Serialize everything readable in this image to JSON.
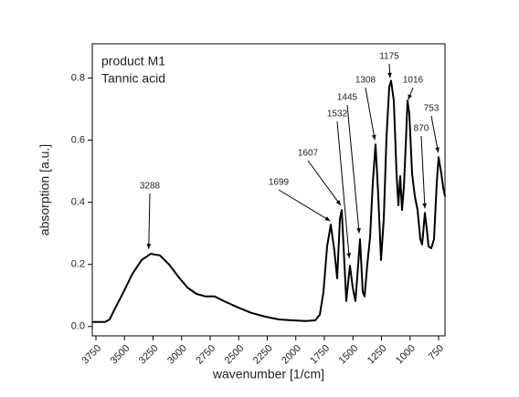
{
  "chart_data": {
    "type": "line",
    "xlabel": "wavenumber [1/cm]",
    "ylabel": "absorption [a.u.]",
    "annotation_text": [
      "product M1",
      "Tannic acid"
    ],
    "color": "#000000",
    "x": [
      3782,
      3670,
      3630,
      3590,
      3510,
      3430,
      3350,
      3270,
      3190,
      3110,
      3030,
      2950,
      2870,
      2790,
      2710,
      2630,
      2510,
      2390,
      2270,
      2150,
      2030,
      1910,
      1830,
      1790,
      1758,
      1726,
      1694,
      1662,
      1638,
      1614,
      1598,
      1574,
      1558,
      1542,
      1526,
      1502,
      1478,
      1454,
      1438,
      1414,
      1398,
      1374,
      1350,
      1326,
      1302,
      1278,
      1254,
      1230,
      1206,
      1182,
      1166,
      1142,
      1118,
      1102,
      1086,
      1070,
      1054,
      1038,
      1022,
      1006,
      982,
      958,
      934,
      910,
      894,
      870,
      854,
      838,
      814,
      790,
      766,
      750,
      726,
      710,
      694
    ],
    "values": [
      0.015,
      0.015,
      0.023,
      0.053,
      0.11,
      0.17,
      0.214,
      0.234,
      0.229,
      0.2,
      0.161,
      0.126,
      0.105,
      0.097,
      0.097,
      0.082,
      0.062,
      0.044,
      0.032,
      0.023,
      0.02,
      0.018,
      0.02,
      0.038,
      0.111,
      0.258,
      0.328,
      0.243,
      0.155,
      0.346,
      0.375,
      0.2,
      0.082,
      0.141,
      0.196,
      0.126,
      0.082,
      0.2,
      0.281,
      0.111,
      0.097,
      0.2,
      0.287,
      0.463,
      0.586,
      0.419,
      0.214,
      0.346,
      0.61,
      0.771,
      0.791,
      0.727,
      0.492,
      0.39,
      0.484,
      0.375,
      0.448,
      0.58,
      0.727,
      0.683,
      0.492,
      0.419,
      0.375,
      0.281,
      0.264,
      0.366,
      0.316,
      0.258,
      0.252,
      0.281,
      0.463,
      0.545,
      0.492,
      0.448,
      0.419
    ],
    "annotations": [
      {
        "x": 3288,
        "y": 0.25
      },
      {
        "x": 1699,
        "y": 0.34
      },
      {
        "x": 1607,
        "y": 0.39
      },
      {
        "x": 1532,
        "y": 0.22
      },
      {
        "x": 1445,
        "y": 0.3
      },
      {
        "x": 1308,
        "y": 0.6
      },
      {
        "x": 1175,
        "y": 0.8
      },
      {
        "x": 1016,
        "y": 0.73
      },
      {
        "x": 870,
        "y": 0.38
      },
      {
        "x": 753,
        "y": 0.56
      }
    ],
    "xlim": [
      3782,
      694
    ],
    "ylim": [
      -0.03,
      0.91
    ],
    "xticks": [
      3750,
      3500,
      3250,
      3000,
      2750,
      2500,
      2250,
      2000,
      1750,
      1500,
      1250,
      1000,
      750
    ],
    "yticks": [
      {
        "value": 0,
        "label": "0.0"
      },
      0.2,
      0.4,
      0.6,
      0.8
    ]
  }
}
